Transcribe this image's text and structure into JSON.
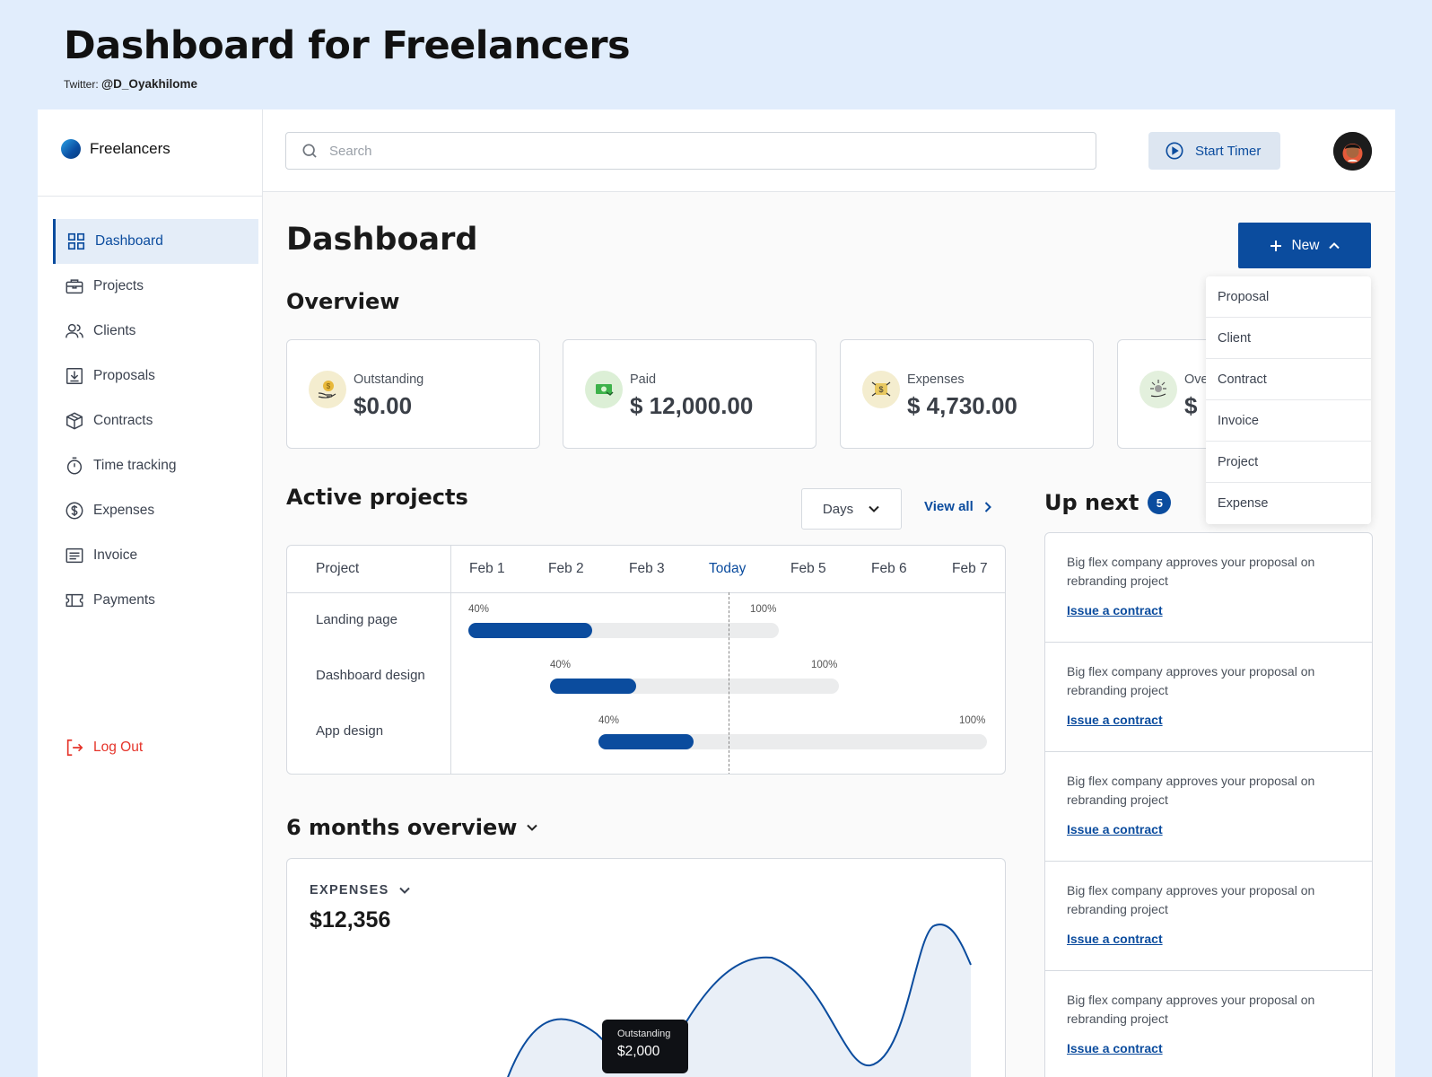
{
  "header": {
    "title": "Dashboard for Freelancers",
    "twitter_label": "Twitter:",
    "twitter_handle": "@D_Oyakhilome"
  },
  "sidebar": {
    "brand": "Freelancers",
    "items": [
      {
        "label": "Dashboard",
        "icon": "grid-icon"
      },
      {
        "label": "Projects",
        "icon": "briefcase-icon"
      },
      {
        "label": "Clients",
        "icon": "users-icon"
      },
      {
        "label": "Proposals",
        "icon": "download-box-icon"
      },
      {
        "label": "Contracts",
        "icon": "package-icon"
      },
      {
        "label": "Time tracking",
        "icon": "stopwatch-icon"
      },
      {
        "label": "Expenses",
        "icon": "dollar-circle-icon"
      },
      {
        "label": "Invoice",
        "icon": "receipt-icon"
      },
      {
        "label": "Payments",
        "icon": "ticket-icon"
      }
    ],
    "logout": "Log Out"
  },
  "topbar": {
    "search_placeholder": "Search",
    "timer_label": "Start Timer"
  },
  "page": {
    "title": "Dashboard",
    "new_button": "New"
  },
  "new_menu": [
    "Proposal",
    "Client",
    "Contract",
    "Invoice",
    "Project",
    "Expense"
  ],
  "overview": {
    "title": "Overview",
    "cards": [
      {
        "label": "Outstanding",
        "value": "$0.00",
        "color": "#f4edcf"
      },
      {
        "label": "Paid",
        "value": "$ 12,000.00",
        "color": "#dcefd6"
      },
      {
        "label": "Expenses",
        "value": "$ 4,730.00",
        "color": "#f4edcf"
      },
      {
        "label": "Ove",
        "value": "$ !",
        "color": "#e3f0dd"
      }
    ]
  },
  "active_projects": {
    "title": "Active projects",
    "range_select": "Days",
    "view_all": "View all",
    "columns": [
      "Project",
      "Feb 1",
      "Feb 2",
      "Feb 3",
      "Today",
      "Feb 5",
      "Feb 6",
      "Feb 7"
    ],
    "rows": [
      {
        "name": "Landing page",
        "start_label": "40%",
        "end_label": "100%",
        "progress": 0.4
      },
      {
        "name": "Dashboard design",
        "start_label": "40%",
        "end_label": "100%",
        "progress": 0.4
      },
      {
        "name": "App design",
        "start_label": "40%",
        "end_label": "100%",
        "progress": 0.4
      }
    ]
  },
  "six_months": {
    "title": "6 months overview",
    "metric_label": "EXPENSES",
    "metric_value": "$12,356",
    "tooltip_label": "Outstanding",
    "tooltip_value": "$2,000"
  },
  "up_next": {
    "title": "Up next",
    "count": "5",
    "items": [
      {
        "text": "Big flex company approves your proposal  on rebranding project",
        "link": "Issue a contract"
      },
      {
        "text": "Big flex company approves your proposal  on rebranding project",
        "link": "Issue a contract"
      },
      {
        "text": "Big flex company approves your proposal  on rebranding project",
        "link": "Issue a contract"
      },
      {
        "text": "Big flex company approves your proposal  on rebranding project",
        "link": "Issue a contract"
      },
      {
        "text": "Big flex company approves your proposal  on rebranding project",
        "link": "Issue a contract"
      }
    ]
  },
  "colors": {
    "accent": "#0b4c9e",
    "logout": "#e5342a",
    "background": "#e1edfc"
  }
}
